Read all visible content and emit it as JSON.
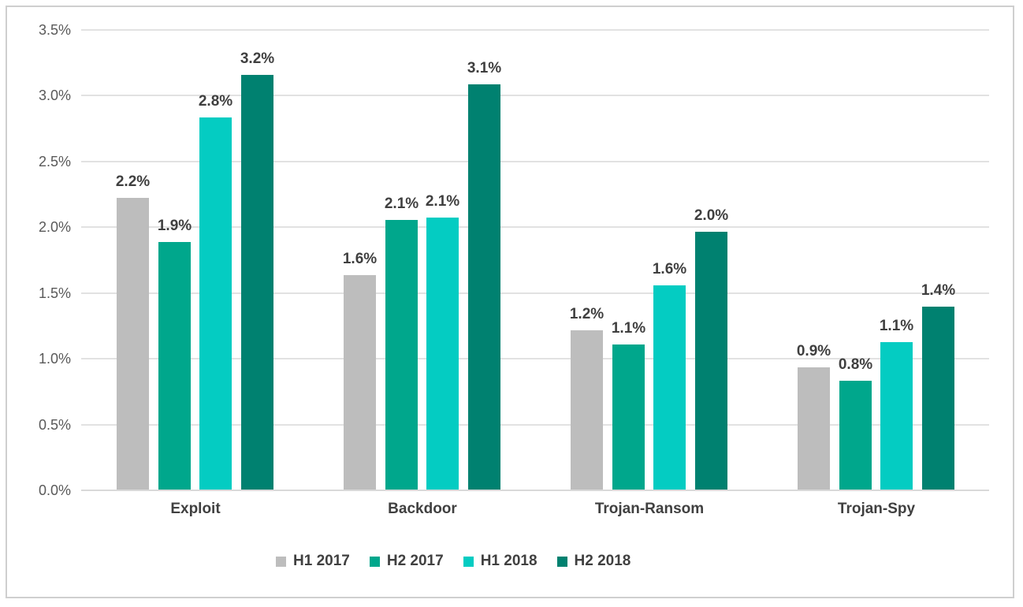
{
  "chart_data": {
    "type": "bar",
    "title": "",
    "xlabel": "",
    "ylabel": "",
    "grid": true,
    "legend_position": "bottom",
    "ylim": [
      0,
      3.5
    ],
    "y_ticks": [
      "3.5%",
      "3.0%",
      "2.5%",
      "2.0%",
      "1.5%",
      "1.0%",
      "0.5%",
      "0.0%"
    ],
    "categories": [
      "Exploit",
      "Backdoor",
      "Trojan-Ransom",
      "Trojan-Spy"
    ],
    "series": [
      {
        "name": "H1 2017",
        "color": "#bdbdbd",
        "values": [
          2.22,
          1.63,
          1.21,
          0.93
        ],
        "labels": [
          "2.2%",
          "1.6%",
          "1.2%",
          "0.9%"
        ]
      },
      {
        "name": "H2 2017",
        "color": "#00a78c",
        "values": [
          1.88,
          2.05,
          1.1,
          0.83
        ],
        "labels": [
          "1.9%",
          "2.1%",
          "1.1%",
          "0.8%"
        ]
      },
      {
        "name": "H1 2018",
        "color": "#04ccc2",
        "values": [
          2.83,
          2.07,
          1.55,
          1.12
        ],
        "labels": [
          "2.8%",
          "2.1%",
          "1.6%",
          "1.1%"
        ]
      },
      {
        "name": "H2 2018",
        "color": "#008170",
        "values": [
          3.15,
          3.08,
          1.96,
          1.39
        ],
        "labels": [
          "3.2%",
          "3.1%",
          "2.0%",
          "1.4%"
        ]
      }
    ]
  }
}
